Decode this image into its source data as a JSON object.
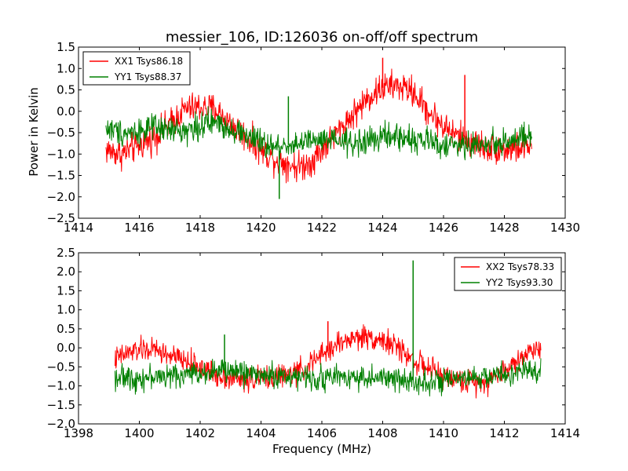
{
  "colors": {
    "red": "#ff0000",
    "green": "#008000"
  },
  "chart_data": [
    {
      "type": "line",
      "title": "messier_106, ID:126036 on-off/off spectrum",
      "xlabel": "",
      "ylabel": "Power in Kelvin",
      "xlim": [
        1414,
        1430
      ],
      "ylim": [
        -2.5,
        1.5
      ],
      "xticks": [
        1414,
        1416,
        1418,
        1420,
        1422,
        1424,
        1426,
        1428,
        1430
      ],
      "yticks": [
        -2.5,
        -2.0,
        -1.5,
        -1.0,
        -0.5,
        0.0,
        0.5,
        1.0,
        1.5
      ],
      "legend_position": "top-left",
      "grid": false,
      "series": [
        {
          "name": "XX1 Tsys86.18",
          "color": "#ff0000",
          "x": [
            1414.9,
            1415.4,
            1416.0,
            1416.5,
            1417.0,
            1417.5,
            1418.0,
            1418.5,
            1419.0,
            1419.5,
            1420.0,
            1420.4,
            1420.8,
            1421.2,
            1421.6,
            1422.0,
            1422.5,
            1423.0,
            1423.5,
            1424.0,
            1424.5,
            1425.0,
            1425.5,
            1426.0,
            1426.5,
            1427.0,
            1427.5,
            1428.0,
            1428.5,
            1428.9
          ],
          "y": [
            -0.9,
            -1.0,
            -0.8,
            -0.6,
            -0.3,
            0.05,
            0.1,
            0.05,
            -0.3,
            -0.6,
            -0.9,
            -1.1,
            -1.2,
            -1.3,
            -1.2,
            -0.9,
            -0.5,
            -0.1,
            0.3,
            0.55,
            0.6,
            0.45,
            0.0,
            -0.35,
            -0.6,
            -0.75,
            -0.85,
            -0.9,
            -0.85,
            -0.8
          ],
          "noise": 0.25,
          "spikes": [
            {
              "x": 1426.7,
              "y": 0.85
            },
            {
              "x": 1424.0,
              "y": 1.25
            }
          ]
        },
        {
          "name": "YY1 Tsys88.37",
          "color": "#008000",
          "x": [
            1414.9,
            1415.5,
            1416.0,
            1416.5,
            1417.0,
            1417.5,
            1418.0,
            1418.5,
            1419.0,
            1419.5,
            1420.0,
            1420.4,
            1420.8,
            1421.2,
            1421.6,
            1422.0,
            1422.5,
            1423.0,
            1423.5,
            1424.0,
            1424.5,
            1425.0,
            1425.5,
            1426.0,
            1426.5,
            1427.0,
            1427.5,
            1428.0,
            1428.5,
            1428.9
          ],
          "y": [
            -0.4,
            -0.5,
            -0.45,
            -0.4,
            -0.45,
            -0.45,
            -0.35,
            -0.25,
            -0.4,
            -0.55,
            -0.75,
            -0.85,
            -0.8,
            -0.75,
            -0.7,
            -0.7,
            -0.7,
            -0.75,
            -0.7,
            -0.6,
            -0.6,
            -0.65,
            -0.7,
            -0.8,
            -0.8,
            -0.8,
            -0.75,
            -0.7,
            -0.65,
            -0.6
          ],
          "noise": 0.22,
          "spikes": [
            {
              "x": 1420.9,
              "y": 0.35
            },
            {
              "x": 1420.6,
              "y": -2.05
            }
          ]
        }
      ]
    },
    {
      "type": "line",
      "title": "",
      "xlabel": "Frequency (MHz)",
      "ylabel": "",
      "xlim": [
        1398,
        1414
      ],
      "ylim": [
        -2.0,
        2.5
      ],
      "xticks": [
        1398,
        1400,
        1402,
        1404,
        1406,
        1408,
        1410,
        1412,
        1414
      ],
      "yticks": [
        -2.0,
        -1.5,
        -1.0,
        -0.5,
        0.0,
        0.5,
        1.0,
        1.5,
        2.0,
        2.5
      ],
      "legend_position": "top-right",
      "grid": false,
      "series": [
        {
          "name": "XX2 Tsys78.33",
          "color": "#ff0000",
          "x": [
            1399.2,
            1399.6,
            1400.0,
            1400.5,
            1401.0,
            1401.5,
            1402.0,
            1402.5,
            1403.0,
            1403.5,
            1404.0,
            1404.5,
            1405.0,
            1405.5,
            1406.0,
            1406.5,
            1407.0,
            1407.5,
            1408.0,
            1408.5,
            1409.0,
            1409.5,
            1410.0,
            1410.5,
            1411.0,
            1411.5,
            1412.0,
            1412.5,
            1413.0,
            1413.2
          ],
          "y": [
            -0.3,
            -0.15,
            -0.05,
            -0.05,
            -0.2,
            -0.35,
            -0.5,
            -0.7,
            -0.8,
            -0.85,
            -0.8,
            -0.75,
            -0.7,
            -0.5,
            -0.2,
            0.1,
            0.25,
            0.3,
            0.2,
            0.0,
            -0.3,
            -0.55,
            -0.75,
            -0.85,
            -0.9,
            -0.85,
            -0.6,
            -0.3,
            0.0,
            0.0
          ],
          "noise": 0.22,
          "spikes": [
            {
              "x": 1406.2,
              "y": 0.7
            }
          ]
        },
        {
          "name": "YY2 Tsys93.30",
          "color": "#008000",
          "x": [
            1399.2,
            1399.6,
            1400.0,
            1400.5,
            1401.0,
            1401.5,
            1402.0,
            1402.5,
            1403.0,
            1403.5,
            1404.0,
            1404.5,
            1405.0,
            1405.5,
            1406.0,
            1406.5,
            1407.0,
            1407.5,
            1408.0,
            1408.5,
            1409.0,
            1409.5,
            1410.0,
            1410.5,
            1411.0,
            1411.5,
            1412.0,
            1412.5,
            1413.0,
            1413.2
          ],
          "y": [
            -0.75,
            -0.8,
            -0.8,
            -0.75,
            -0.75,
            -0.7,
            -0.65,
            -0.6,
            -0.6,
            -0.65,
            -0.7,
            -0.75,
            -0.75,
            -0.8,
            -0.8,
            -0.75,
            -0.75,
            -0.8,
            -0.8,
            -0.85,
            -0.85,
            -0.9,
            -0.9,
            -0.85,
            -0.8,
            -0.75,
            -0.7,
            -0.65,
            -0.6,
            -0.6
          ],
          "noise": 0.22,
          "spikes": [
            {
              "x": 1409.0,
              "y": 2.3
            },
            {
              "x": 1402.8,
              "y": 0.35
            }
          ]
        }
      ]
    }
  ]
}
